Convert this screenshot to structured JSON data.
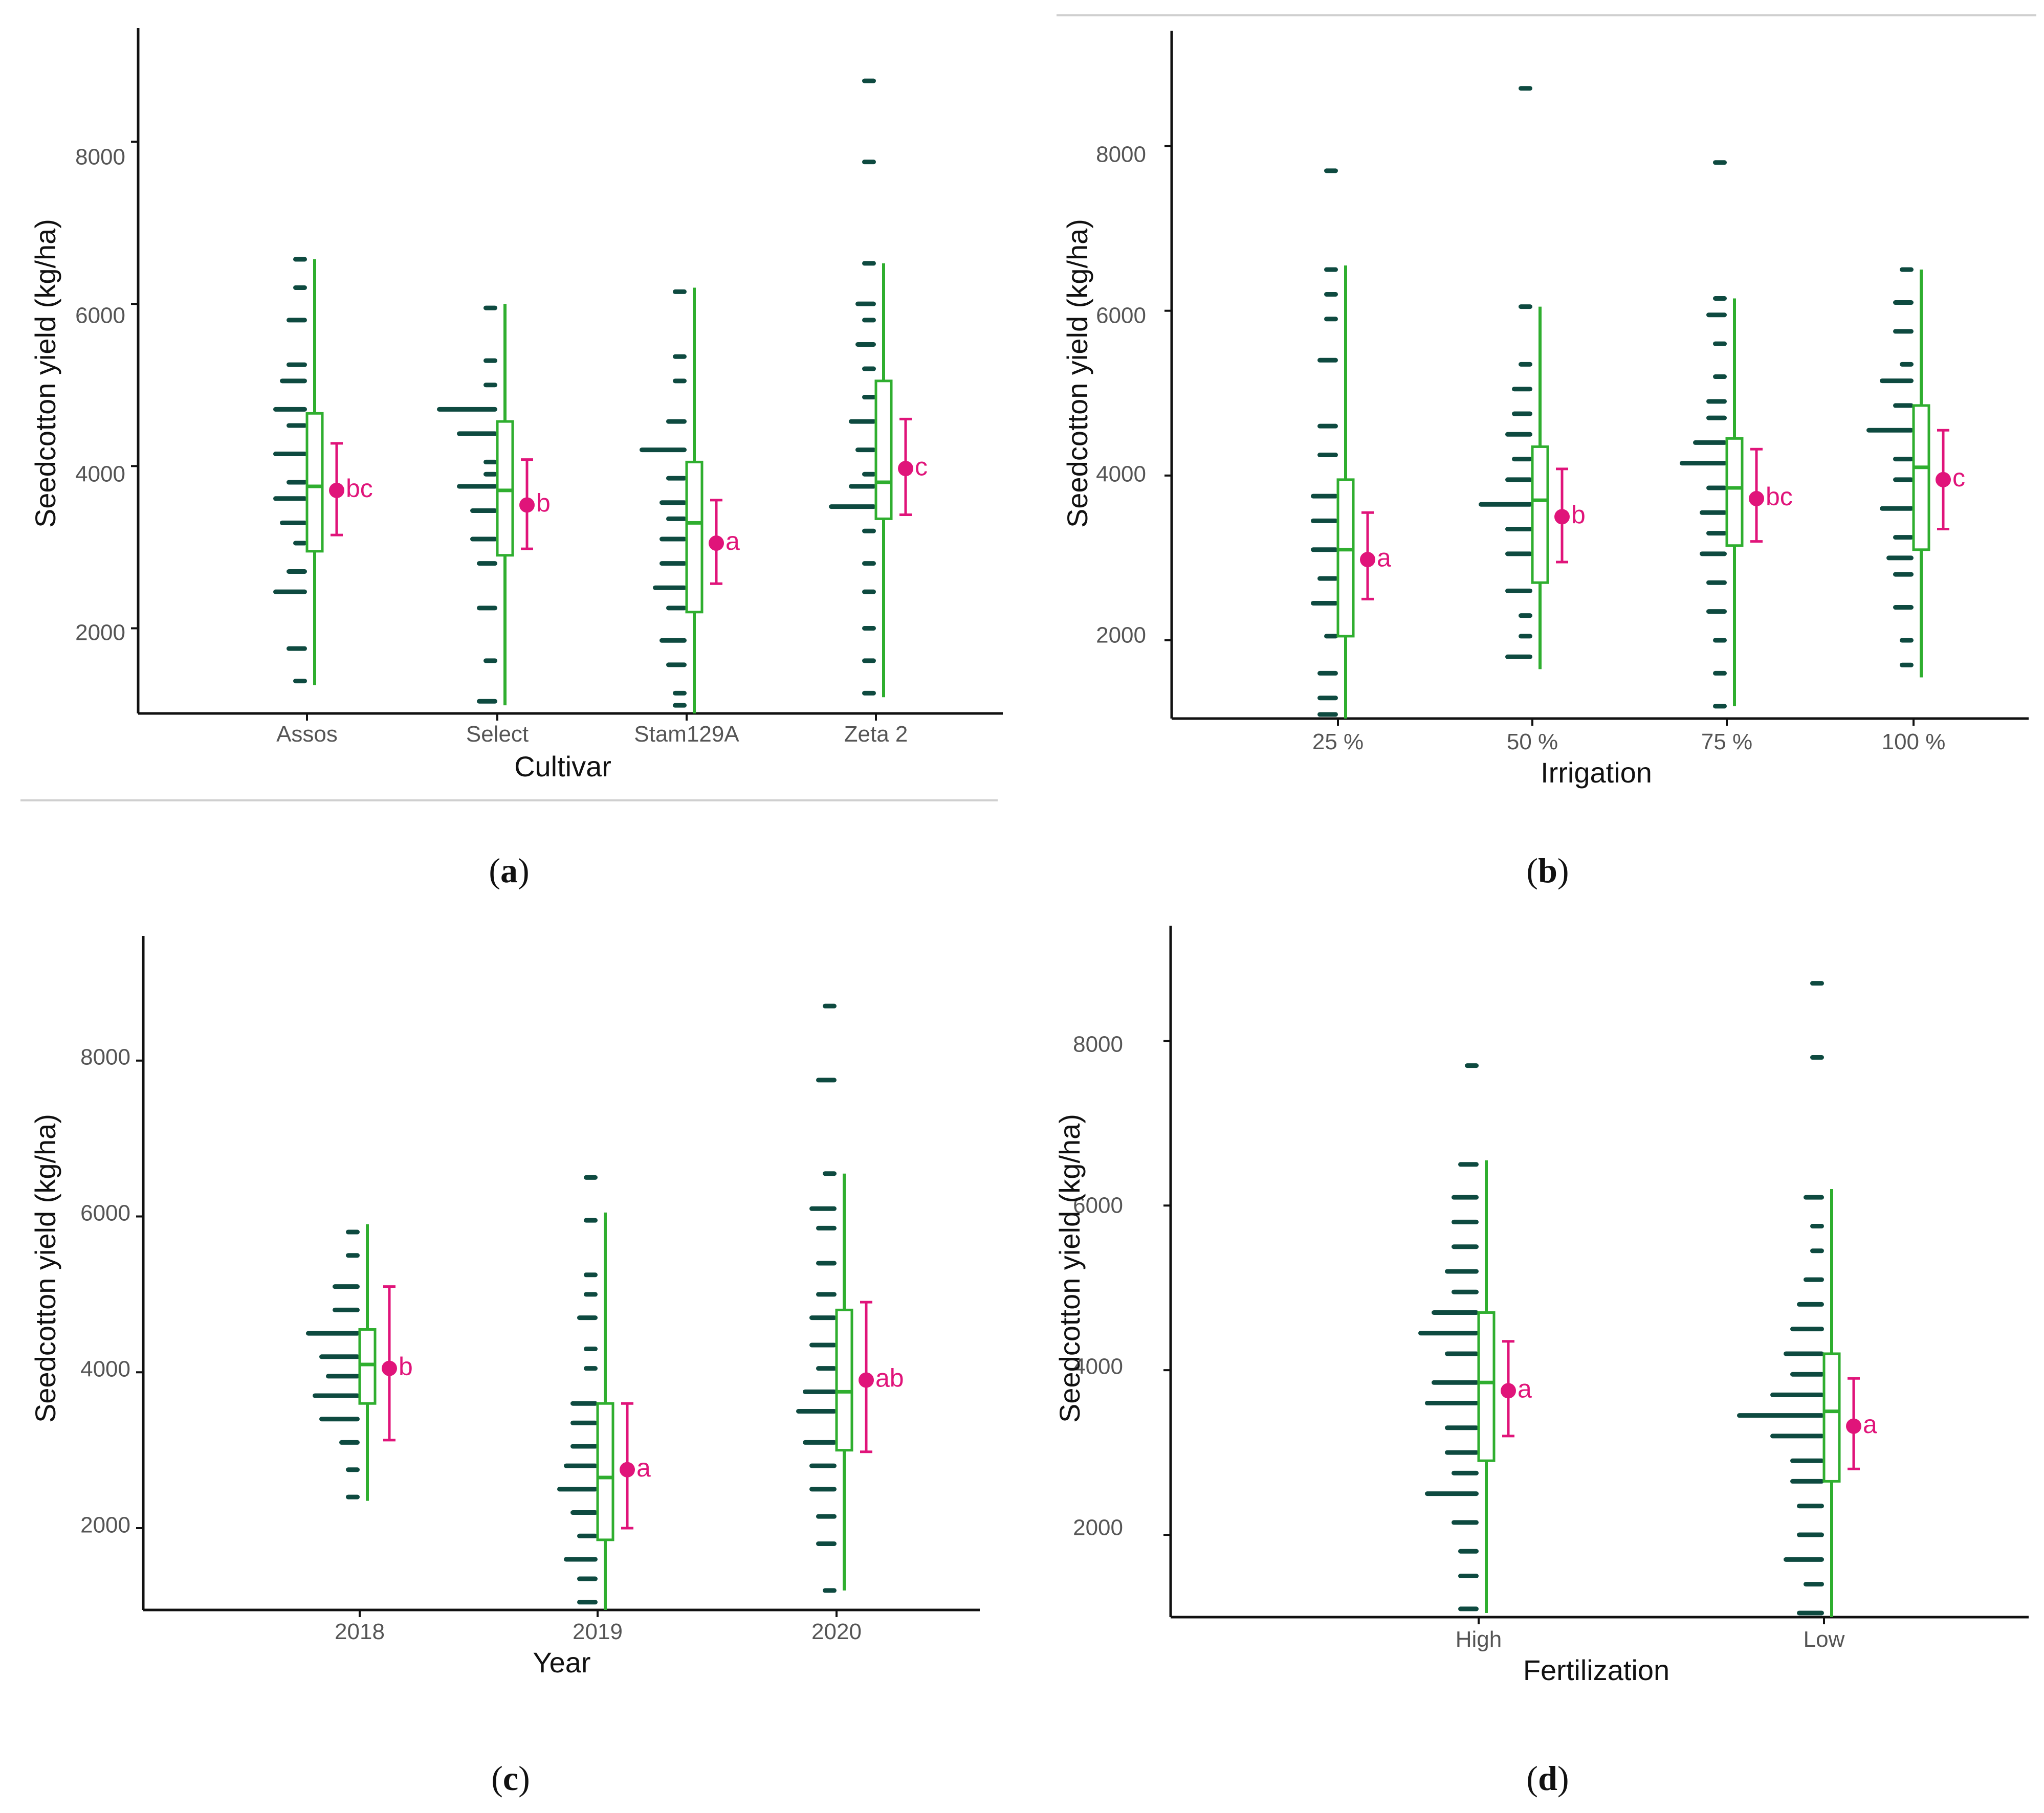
{
  "colors": {
    "dots": "#0e4a40",
    "box": "#2fae2f",
    "mean": "#e0147a",
    "axis": "#111111",
    "ticktext": "#555555",
    "separator": "#cfcfcf"
  },
  "chart_data": [
    {
      "panel": "a",
      "caption": {
        "open": "(",
        "letter": "a",
        "close": ")"
      },
      "type": "raincloud",
      "ylabel": "Seedcotton yield (kg/ha)",
      "xlabel": "Cultivar",
      "ylim": [
        950,
        9400
      ],
      "yticks": [
        2000,
        4000,
        6000,
        8000
      ],
      "categories": [
        {
          "label": "Assos",
          "min": 1300,
          "q1": 2950,
          "median": 3750,
          "q3": 4650,
          "max": 6550,
          "mean": 3700,
          "ci": [
            3150,
            4280
          ],
          "letter": "bc",
          "dots": [
            [
              6550,
              1
            ],
            [
              6200,
              1
            ],
            [
              5800,
              2
            ],
            [
              5250,
              2
            ],
            [
              5050,
              3
            ],
            [
              4700,
              4
            ],
            [
              4500,
              2
            ],
            [
              4150,
              4
            ],
            [
              3800,
              2
            ],
            [
              3600,
              4
            ],
            [
              3300,
              3
            ],
            [
              3050,
              1
            ],
            [
              2700,
              2
            ],
            [
              2450,
              4
            ],
            [
              1750,
              2
            ],
            [
              1350,
              1
            ]
          ]
        },
        {
          "label": "Select",
          "min": 1050,
          "q1": 2900,
          "median": 3700,
          "q3": 4550,
          "max": 6000,
          "mean": 3520,
          "ci": [
            2980,
            4080
          ],
          "letter": "b",
          "dots": [
            [
              5950,
              1
            ],
            [
              5300,
              1
            ],
            [
              5000,
              1
            ],
            [
              4700,
              8
            ],
            [
              4400,
              5
            ],
            [
              4050,
              1
            ],
            [
              3900,
              1
            ],
            [
              3750,
              5
            ],
            [
              3450,
              3
            ],
            [
              3100,
              3
            ],
            [
              2800,
              2
            ],
            [
              2250,
              2
            ],
            [
              1600,
              1
            ],
            [
              1100,
              2
            ]
          ]
        },
        {
          "label": "Stam129A",
          "min": 950,
          "q1": 2200,
          "median": 3300,
          "q3": 4050,
          "max": 6200,
          "mean": 3050,
          "ci": [
            2550,
            3580
          ],
          "letter": "a",
          "dots": [
            [
              6150,
              1
            ],
            [
              5350,
              1
            ],
            [
              5050,
              1
            ],
            [
              4550,
              2
            ],
            [
              4200,
              6
            ],
            [
              3850,
              2
            ],
            [
              3550,
              3
            ],
            [
              3350,
              2
            ],
            [
              3100,
              3
            ],
            [
              2800,
              3
            ],
            [
              2500,
              4
            ],
            [
              2250,
              2
            ],
            [
              1850,
              3
            ],
            [
              1550,
              2
            ],
            [
              1200,
              1
            ],
            [
              1050,
              1
            ]
          ]
        },
        {
          "label": "Zeta 2",
          "min": 1150,
          "q1": 3350,
          "median": 3800,
          "q3": 5050,
          "max": 6500,
          "mean": 3970,
          "ci": [
            3400,
            4580
          ],
          "letter": "c",
          "dots": [
            [
              8750,
              1
            ],
            [
              7750,
              1
            ],
            [
              6500,
              1
            ],
            [
              6000,
              2
            ],
            [
              5800,
              1
            ],
            [
              5500,
              2
            ],
            [
              5200,
              1
            ],
            [
              4850,
              1
            ],
            [
              4550,
              3
            ],
            [
              4200,
              2
            ],
            [
              3900,
              1
            ],
            [
              3750,
              3
            ],
            [
              3500,
              6
            ],
            [
              3200,
              1
            ],
            [
              2800,
              1
            ],
            [
              2450,
              1
            ],
            [
              2000,
              1
            ],
            [
              1600,
              1
            ],
            [
              1200,
              1
            ]
          ]
        }
      ]
    },
    {
      "panel": "b",
      "caption": {
        "open": "(",
        "letter": "b",
        "close": ")"
      },
      "type": "raincloud",
      "ylabel": "Seedcotton yield (kg/ha)",
      "xlabel": "Irrigation",
      "ylim": [
        1050,
        9400
      ],
      "yticks": [
        2000,
        4000,
        6000,
        8000
      ],
      "categories": [
        {
          "label": "25 %",
          "min": 1050,
          "q1": 2050,
          "median": 3100,
          "q3": 3950,
          "max": 6550,
          "mean": 2980,
          "ci": [
            2500,
            3550
          ],
          "letter": "a",
          "dots": [
            [
              7700,
              1
            ],
            [
              6500,
              1
            ],
            [
              6200,
              1
            ],
            [
              5900,
              1
            ],
            [
              5400,
              2
            ],
            [
              4600,
              2
            ],
            [
              4250,
              2
            ],
            [
              3750,
              3
            ],
            [
              3450,
              3
            ],
            [
              3100,
              3
            ],
            [
              2750,
              2
            ],
            [
              2450,
              3
            ],
            [
              2050,
              1
            ],
            [
              1600,
              2
            ],
            [
              1300,
              2
            ],
            [
              1100,
              2
            ]
          ]
        },
        {
          "label": "50 %",
          "min": 1650,
          "q1": 2700,
          "median": 3700,
          "q3": 4350,
          "max": 6050,
          "mean": 3500,
          "ci": [
            2950,
            4080
          ],
          "letter": "b",
          "dots": [
            [
              8700,
              1
            ],
            [
              6050,
              1
            ],
            [
              5350,
              1
            ],
            [
              5050,
              2
            ],
            [
              4750,
              2
            ],
            [
              4500,
              3
            ],
            [
              4200,
              2
            ],
            [
              3950,
              3
            ],
            [
              3650,
              7
            ],
            [
              3350,
              3
            ],
            [
              3050,
              3
            ],
            [
              2600,
              3
            ],
            [
              2300,
              1
            ],
            [
              2050,
              1
            ],
            [
              1800,
              3
            ]
          ]
        },
        {
          "label": "75 %",
          "min": 1200,
          "q1": 3150,
          "median": 3850,
          "q3": 4450,
          "max": 6150,
          "mean": 3720,
          "ci": [
            3200,
            4320
          ],
          "letter": "bc",
          "dots": [
            [
              7800,
              1
            ],
            [
              6150,
              1
            ],
            [
              5950,
              2
            ],
            [
              5600,
              1
            ],
            [
              5200,
              1
            ],
            [
              4900,
              2
            ],
            [
              4700,
              2
            ],
            [
              4400,
              4
            ],
            [
              4150,
              6
            ],
            [
              3850,
              2
            ],
            [
              3550,
              3
            ],
            [
              3300,
              2
            ],
            [
              3050,
              3
            ],
            [
              2700,
              2
            ],
            [
              2350,
              2
            ],
            [
              2000,
              1
            ],
            [
              1600,
              1
            ],
            [
              1200,
              1
            ]
          ]
        },
        {
          "label": "100 %",
          "min": 1550,
          "q1": 3100,
          "median": 4100,
          "q3": 4850,
          "max": 6500,
          "mean": 3950,
          "ci": [
            3350,
            4550
          ],
          "letter": "c",
          "dots": [
            [
              6500,
              1
            ],
            [
              6100,
              2
            ],
            [
              5750,
              2
            ],
            [
              5350,
              1
            ],
            [
              5150,
              4
            ],
            [
              4850,
              2
            ],
            [
              4550,
              6
            ],
            [
              4200,
              2
            ],
            [
              3950,
              2
            ],
            [
              3600,
              4
            ],
            [
              3250,
              2
            ],
            [
              3000,
              3
            ],
            [
              2800,
              2
            ],
            [
              2400,
              2
            ],
            [
              2000,
              1
            ],
            [
              1700,
              1
            ]
          ]
        }
      ]
    },
    {
      "panel": "c",
      "caption": {
        "open": "(",
        "letter": "c",
        "close": ")"
      },
      "type": "raincloud",
      "ylabel": "Seedcotton yield (kg/ha)",
      "xlabel": "Year",
      "ylim": [
        950,
        9600
      ],
      "yticks": [
        2000,
        4000,
        6000,
        8000
      ],
      "categories": [
        {
          "label": "2018",
          "min": 2350,
          "q1": 3600,
          "median": 4100,
          "q3": 4550,
          "max": 5900,
          "mean": 4050,
          "ci": [
            3130,
            5100
          ],
          "letter": "b",
          "dots": [
            [
              5800,
              1
            ],
            [
              5500,
              1
            ],
            [
              5100,
              3
            ],
            [
              4800,
              3
            ],
            [
              4500,
              7
            ],
            [
              4200,
              5
            ],
            [
              3950,
              4
            ],
            [
              3700,
              6
            ],
            [
              3400,
              5
            ],
            [
              3100,
              2
            ],
            [
              2750,
              1
            ],
            [
              2400,
              1
            ]
          ]
        },
        {
          "label": "2019",
          "min": 950,
          "q1": 1850,
          "median": 2650,
          "q3": 3600,
          "max": 6050,
          "mean": 2750,
          "ci": [
            2000,
            3600
          ],
          "letter": "a",
          "dots": [
            [
              6500,
              1
            ],
            [
              5950,
              1
            ],
            [
              5250,
              1
            ],
            [
              5000,
              1
            ],
            [
              4700,
              2
            ],
            [
              4300,
              1
            ],
            [
              4050,
              1
            ],
            [
              3600,
              3
            ],
            [
              3350,
              3
            ],
            [
              3050,
              3
            ],
            [
              2800,
              4
            ],
            [
              2500,
              5
            ],
            [
              2200,
              3
            ],
            [
              1900,
              2
            ],
            [
              1600,
              4
            ],
            [
              1350,
              2
            ],
            [
              1050,
              2
            ]
          ]
        },
        {
          "label": "2020",
          "min": 1200,
          "q1": 3000,
          "median": 3750,
          "q3": 4800,
          "max": 6550,
          "mean": 3900,
          "ci": [
            2980,
            4900
          ],
          "letter": "ab",
          "dots": [
            [
              8700,
              1
            ],
            [
              7750,
              2
            ],
            [
              6550,
              1
            ],
            [
              6100,
              3
            ],
            [
              5850,
              2
            ],
            [
              5400,
              2
            ],
            [
              5000,
              2
            ],
            [
              4700,
              3
            ],
            [
              4350,
              3
            ],
            [
              4050,
              2
            ],
            [
              3750,
              4
            ],
            [
              3500,
              5
            ],
            [
              3100,
              4
            ],
            [
              2800,
              3
            ],
            [
              2500,
              3
            ],
            [
              2150,
              2
            ],
            [
              1800,
              2
            ],
            [
              1200,
              1
            ]
          ]
        }
      ]
    },
    {
      "panel": "d",
      "caption": {
        "open": "(",
        "letter": "d",
        "close": ")"
      },
      "type": "raincloud",
      "ylabel": "Seedcotton yield (kg/ha)",
      "xlabel": "Fertilization",
      "ylim": [
        1000,
        9400
      ],
      "yticks": [
        2000,
        4000,
        6000,
        8000
      ],
      "categories": [
        {
          "label": "High",
          "min": 1050,
          "q1": 2900,
          "median": 3850,
          "q3": 4700,
          "max": 6550,
          "mean": 3750,
          "ci": [
            3200,
            4350
          ],
          "letter": "a",
          "dots": [
            [
              7700,
              1
            ],
            [
              6500,
              2
            ],
            [
              6100,
              3
            ],
            [
              5800,
              3
            ],
            [
              5500,
              3
            ],
            [
              5200,
              4
            ],
            [
              4950,
              3
            ],
            [
              4700,
              6
            ],
            [
              4450,
              8
            ],
            [
              4200,
              4
            ],
            [
              3850,
              6
            ],
            [
              3600,
              7
            ],
            [
              3300,
              4
            ],
            [
              3000,
              4
            ],
            [
              2750,
              3
            ],
            [
              2500,
              7
            ],
            [
              2150,
              3
            ],
            [
              1800,
              2
            ],
            [
              1500,
              2
            ],
            [
              1100,
              2
            ]
          ]
        },
        {
          "label": "Low",
          "min": 1000,
          "q1": 2650,
          "median": 3500,
          "q3": 4200,
          "max": 6200,
          "mean": 3320,
          "ci": [
            2800,
            3900
          ],
          "letter": "a",
          "dots": [
            [
              8700,
              1
            ],
            [
              7800,
              1
            ],
            [
              6100,
              2
            ],
            [
              5750,
              1
            ],
            [
              5450,
              1
            ],
            [
              5100,
              2
            ],
            [
              4800,
              3
            ],
            [
              4500,
              4
            ],
            [
              4200,
              5
            ],
            [
              3950,
              4
            ],
            [
              3700,
              7
            ],
            [
              3450,
              12
            ],
            [
              3200,
              7
            ],
            [
              2900,
              4
            ],
            [
              2650,
              4
            ],
            [
              2350,
              3
            ],
            [
              2000,
              3
            ],
            [
              1700,
              5
            ],
            [
              1400,
              2
            ],
            [
              1050,
              3
            ]
          ]
        }
      ]
    }
  ]
}
